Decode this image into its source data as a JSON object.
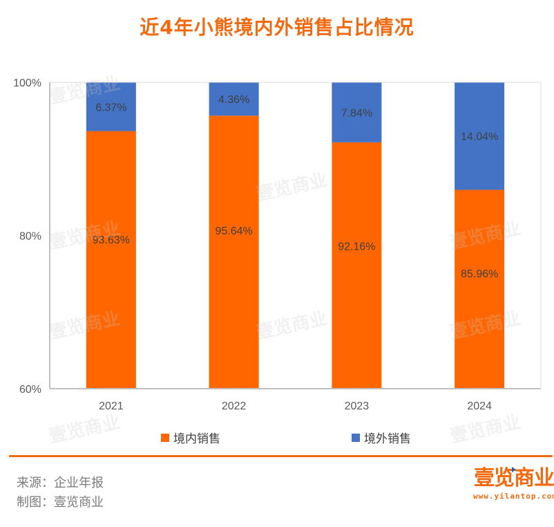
{
  "chart_data": {
    "type": "bar",
    "stacked": true,
    "title": "近4年小熊境内外销售占比情况",
    "xlabel": "",
    "ylabel": "",
    "categories": [
      "2021",
      "2022",
      "2023",
      "2024"
    ],
    "ylim": [
      60,
      100
    ],
    "yticks": [
      60,
      80,
      100
    ],
    "ytick_labels": [
      "60%",
      "80%",
      "100%"
    ],
    "series": [
      {
        "name": "境内销售",
        "color": "#ff6600",
        "values": [
          93.63,
          95.64,
          92.16,
          85.96
        ],
        "labels": [
          "93.63%",
          "95.64%",
          "92.16%",
          "85.96%"
        ]
      },
      {
        "name": "境外销售",
        "color": "#4472c4",
        "values": [
          6.37,
          4.36,
          7.84,
          14.04
        ],
        "labels": [
          "6.37%",
          "4.36%",
          "7.84%",
          "14.04%"
        ]
      }
    ],
    "legend_position": "bottom",
    "grid": false
  },
  "footer": {
    "source": "来源：企业年报",
    "maker": "制图：壹览商业"
  },
  "logo": {
    "name": "壹览商业",
    "url": "www.yilantop.com"
  },
  "watermark": "壹览商业"
}
